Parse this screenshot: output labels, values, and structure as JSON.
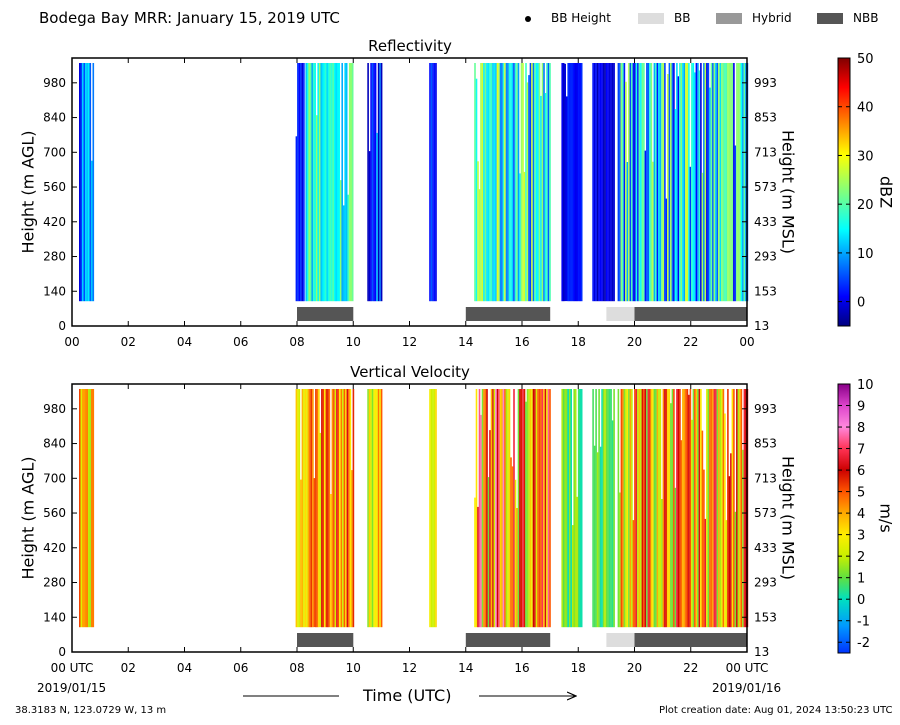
{
  "header": {
    "title": "Bodega Bay MRR:  January 15, 2019 UTC",
    "legend": [
      {
        "label": "BB Height",
        "kind": "dot",
        "color": "#000000"
      },
      {
        "label": "BB",
        "kind": "swatch",
        "color": "#dddddd"
      },
      {
        "label": "Hybrid",
        "kind": "swatch",
        "color": "#999999"
      },
      {
        "label": "NBB",
        "kind": "swatch",
        "color": "#555555"
      }
    ]
  },
  "footer": {
    "location": "38.3183 N, 123.0729 W, 13 m",
    "creation": "Plot creation date: Aug 01, 2024 13:50:23 UTC",
    "x_axis_label": "Time (UTC)",
    "start_date": "2019/01/15",
    "end_date": "2019/01/16"
  },
  "chart_data": [
    {
      "type": "heatmap",
      "title": "Reflectivity",
      "xlabel": "Time (UTC)",
      "ylabel": "Height (m AGL)",
      "ylabel_right": "Height (m MSL)",
      "x_ticks": [
        "00",
        "02",
        "04",
        "06",
        "08",
        "10",
        "12",
        "14",
        "16",
        "18",
        "20",
        "22",
        "00"
      ],
      "y_ticks": [
        "0",
        "140",
        "280",
        "420",
        "560",
        "700",
        "840",
        "980"
      ],
      "y_ticks_right": [
        "13",
        "153",
        "293",
        "433",
        "573",
        "713",
        "853",
        "993"
      ],
      "xlim": [
        0,
        24
      ],
      "ylim": [
        0,
        1080
      ],
      "colorbar": {
        "label": "dBZ",
        "range": [
          -5,
          50
        ],
        "ticks": [
          0,
          10,
          20,
          30,
          40,
          50
        ]
      },
      "data_height_range_m": [
        100,
        1060
      ],
      "echo_periods_utc": [
        {
          "start": 0.25,
          "end": 0.75,
          "dbz_low": 0,
          "dbz_high": 18
        },
        {
          "start": 7.95,
          "end": 8.25,
          "dbz_low": -3,
          "dbz_high": 5
        },
        {
          "start": 8.3,
          "end": 10.0,
          "dbz_low": 10,
          "dbz_high": 25
        },
        {
          "start": 10.5,
          "end": 11.0,
          "dbz_low": -2,
          "dbz_high": 15
        },
        {
          "start": 12.7,
          "end": 12.95,
          "dbz_low": 0,
          "dbz_high": 12
        },
        {
          "start": 14.3,
          "end": 17.0,
          "dbz_low": 5,
          "dbz_high": 28
        },
        {
          "start": 17.4,
          "end": 18.1,
          "dbz_low": -2,
          "dbz_high": 5
        },
        {
          "start": 18.5,
          "end": 19.3,
          "dbz_low": -3,
          "dbz_high": 3
        },
        {
          "start": 19.4,
          "end": 24.0,
          "dbz_low": 0,
          "dbz_high": 28
        }
      ],
      "bright_band_classification": [
        {
          "start": 8.0,
          "end": 10.0,
          "type": "NBB"
        },
        {
          "start": 14.0,
          "end": 17.0,
          "type": "NBB"
        },
        {
          "start": 19.0,
          "end": 20.0,
          "type": "BB"
        },
        {
          "start": 20.0,
          "end": 24.0,
          "type": "NBB"
        }
      ]
    },
    {
      "type": "heatmap",
      "title": "Vertical Velocity",
      "xlabel": "Time (UTC)",
      "ylabel": "Height (m AGL)",
      "ylabel_right": "Height (m MSL)",
      "x_ticks": [
        "00 UTC",
        "02",
        "04",
        "06",
        "08",
        "10",
        "12",
        "14",
        "16",
        "18",
        "20",
        "22",
        "00 UTC"
      ],
      "y_ticks": [
        "0",
        "140",
        "280",
        "420",
        "560",
        "700",
        "840",
        "980"
      ],
      "y_ticks_right": [
        "13",
        "153",
        "293",
        "433",
        "573",
        "713",
        "853",
        "993"
      ],
      "xlim": [
        0,
        24
      ],
      "ylim": [
        0,
        1080
      ],
      "colorbar": {
        "label": "m/s",
        "range": [
          -2.5,
          10
        ],
        "ticks": [
          -2,
          -1,
          0,
          1,
          2,
          3,
          4,
          5,
          6,
          7,
          8,
          9,
          10
        ]
      },
      "data_height_range_m": [
        100,
        1060
      ],
      "echo_periods_utc": [
        {
          "start": 0.25,
          "end": 0.75,
          "ms_low": 1,
          "ms_high": 6.5
        },
        {
          "start": 7.95,
          "end": 10.0,
          "ms_low": 2,
          "ms_high": 6.5
        },
        {
          "start": 10.5,
          "end": 11.0,
          "ms_low": 1,
          "ms_high": 5
        },
        {
          "start": 12.7,
          "end": 12.95,
          "ms_low": 2,
          "ms_high": 4
        },
        {
          "start": 14.3,
          "end": 17.0,
          "ms_low": 1,
          "ms_high": 8
        },
        {
          "start": 17.4,
          "end": 18.1,
          "ms_low": 0,
          "ms_high": 2
        },
        {
          "start": 18.5,
          "end": 19.3,
          "ms_low": 0,
          "ms_high": 2
        },
        {
          "start": 19.4,
          "end": 24.0,
          "ms_low": 1,
          "ms_high": 7
        }
      ],
      "bright_band_classification": [
        {
          "start": 8.0,
          "end": 10.0,
          "type": "NBB"
        },
        {
          "start": 14.0,
          "end": 17.0,
          "type": "NBB"
        },
        {
          "start": 19.0,
          "end": 20.0,
          "type": "BB"
        },
        {
          "start": 20.0,
          "end": 24.0,
          "type": "NBB"
        }
      ]
    }
  ]
}
